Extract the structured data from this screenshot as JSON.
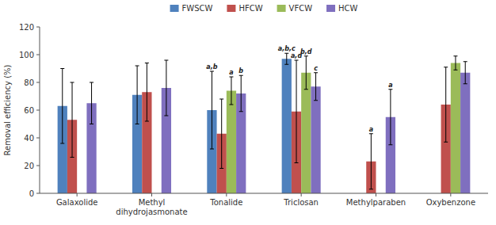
{
  "chart_data": {
    "type": "bar",
    "categories": [
      "Galaxolide",
      "Methyl\ndihydrojasmonate",
      "Tonalide",
      "Triclosan",
      "Methylparaben",
      "Oxybenzone"
    ],
    "series": [
      {
        "name": "FWSCW",
        "color": "#4f81bd",
        "values": [
          63,
          71,
          60,
          97,
          null,
          null
        ],
        "errors": [
          27,
          21,
          28,
          4,
          null,
          null
        ],
        "annotations": [
          null,
          null,
          "a,b",
          "a,b,c",
          null,
          null
        ]
      },
      {
        "name": "HFCW",
        "color": "#c0504d",
        "values": [
          53,
          73,
          43,
          59,
          23,
          64
        ],
        "errors": [
          27,
          21,
          25,
          37,
          20,
          27
        ],
        "annotations": [
          null,
          null,
          null,
          "a,d",
          "a",
          null
        ]
      },
      {
        "name": "VFCW",
        "color": "#9bbb59",
        "values": [
          null,
          null,
          74,
          87,
          null,
          94
        ],
        "errors": [
          null,
          null,
          10,
          12,
          null,
          5
        ],
        "annotations": [
          null,
          null,
          "a",
          "b,d",
          null,
          null
        ]
      },
      {
        "name": "HCW",
        "color": "#7f6fbf",
        "values": [
          65,
          76,
          72,
          77,
          55,
          87
        ],
        "errors": [
          15,
          20,
          13,
          10,
          20,
          8
        ],
        "annotations": [
          null,
          null,
          "b",
          "c",
          "a",
          null
        ]
      }
    ],
    "y_label": "Removal efficiency (%)",
    "ylim": [
      0,
      120
    ],
    "yticks": [
      0,
      20,
      40,
      60,
      80,
      100,
      120
    ],
    "grid": false,
    "legend": "top"
  }
}
